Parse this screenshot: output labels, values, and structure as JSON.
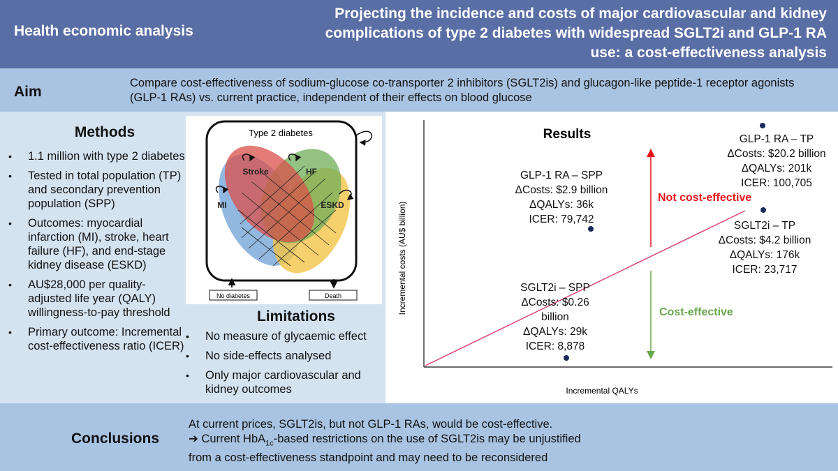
{
  "header": {
    "section": "Health economic analysis",
    "title": "Projecting the incidence and costs of major cardiovascular and kidney complications of type 2 diabetes with widespread SGLT2i and GLP-1 RA use: a cost-effectiveness analysis"
  },
  "aim": {
    "label": "Aim",
    "text": "Compare cost-effectiveness of sodium-glucose co-transporter 2 inhibitors (SGLT2is) and glucagon-like peptide-1 receptor agonists (GLP-1 RAs) vs. current practice, independent of their effects on blood glucose"
  },
  "methods": {
    "title": "Methods",
    "items": [
      "1.1 million with type 2 diabetes",
      "Tested in total population (TP) and secondary prevention population (SPP)",
      "Outcomes: myocardial infarction (MI), stroke, heart failure (HF), and end-stage kidney disease (ESKD)",
      "AU$28,000 per quality-adjusted life year (QALY) willingness-to-pay threshold",
      "Primary outcome: Incremental cost-effectiveness ratio (ICER)"
    ]
  },
  "diagram": {
    "title": "Type 2 diabetes",
    "stroke": "Stroke",
    "hf": "HF",
    "mi": "MI",
    "eskd": "ESKD",
    "no_diabetes": "No diabetes",
    "death": "Death"
  },
  "limitations": {
    "title": "Limitations",
    "items": [
      "No measure of glycaemic effect",
      "No side-effects analysed",
      "Only major cardiovascular and kidney outcomes"
    ]
  },
  "results": {
    "title": "Results",
    "ylabel": "Incremental costs (AU$ billion)",
    "xlabel": "Incremental QALYs",
    "not_ce": "Not cost-effective",
    "ce": "Cost-effective",
    "colors": {
      "not_ce": "#e8141b",
      "ce": "#6aa84f",
      "threshold": "#d9447c",
      "point": "#1b2a5a"
    }
  },
  "chart_data": {
    "type": "scatter",
    "title": "Results",
    "xlabel": "Incremental QALYs",
    "ylabel": "Incremental costs (AU$ billion)",
    "threshold": "AU$28,000 per QALY",
    "points": [
      {
        "label": "GLP-1 RA – TP",
        "costs": 20.2,
        "qalys_k": 201,
        "lines": [
          "GLP-1 RA – TP",
          "ΔCosts: $20.2 billion",
          "ΔQALYs: 201k",
          "ICER: 100,705"
        ]
      },
      {
        "label": "GLP-1 RA – SPP",
        "costs": 2.9,
        "qalys_k": 36,
        "lines": [
          "GLP-1 RA – SPP",
          "ΔCosts: $2.9 billion",
          "ΔQALYs: 36k",
          "ICER: 79,742"
        ]
      },
      {
        "label": "SGLT2i – TP",
        "costs": 4.2,
        "qalys_k": 176,
        "lines": [
          "SGLT2i – TP",
          "ΔCosts: $4.2 billion",
          "ΔQALYs: 176k",
          "ICER: 23,717"
        ]
      },
      {
        "label": "SGLT2i – SPP",
        "costs": 0.26,
        "qalys_k": 29,
        "lines": [
          "SGLT2i – SPP",
          "ΔCosts: $0.26",
          "billion",
          "ΔQALYs: 29k",
          "ICER: 8,878"
        ]
      }
    ]
  },
  "conclusions": {
    "label": "Conclusions",
    "line1": "At current prices, SGLT2is, but not GLP-1 RAs, would be cost-effective.",
    "arrow": "➔",
    "line2a": "Current HbA",
    "sub": "1c",
    "line2b": "-based restrictions on the use of SGLT2is may be unjustified",
    "line3": "from a cost-effectiveness standpoint and may need to be reconsidered"
  }
}
